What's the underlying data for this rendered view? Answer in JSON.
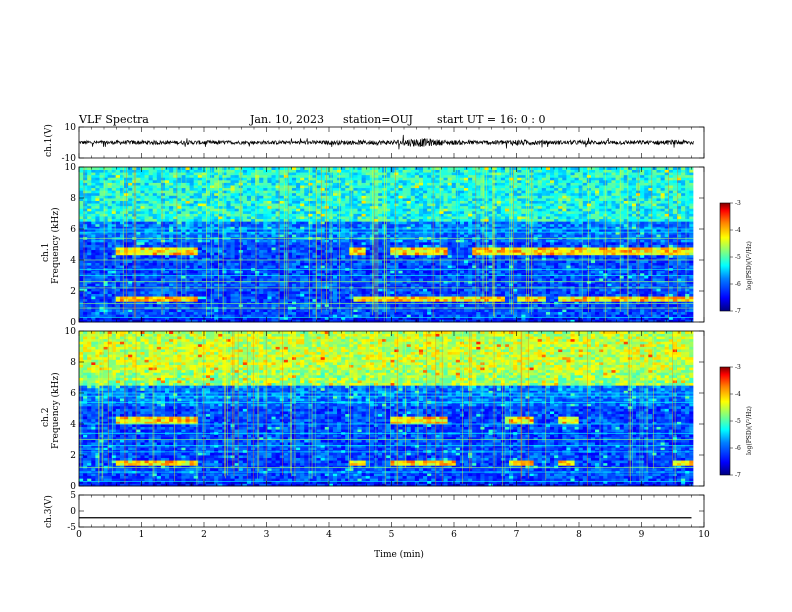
{
  "header": {
    "title": "VLF Spectra",
    "date": "Jan. 10, 2023",
    "station": "station=OUJ",
    "start": "start UT =  16: 0 : 0"
  },
  "colors": {
    "scale": [
      "#00007f",
      "#0000ff",
      "#0080ff",
      "#00ffff",
      "#80ff80",
      "#ffff00",
      "#ff8000",
      "#ff0000",
      "#7f0000"
    ],
    "axes": "#000000",
    "background": "#ffffff"
  },
  "chart_data": [
    {
      "type": "line",
      "id": "ch1_waveform",
      "ylabel": "ch.1(V)",
      "ylim": [
        -10,
        10
      ],
      "yticks": [
        "10",
        "-10"
      ],
      "note": "broadband waveform, amplitude about +/-1.5 V with bursts near 5.4 min",
      "x": [
        0,
        0.5,
        1.0,
        1.5,
        2.0,
        2.5,
        3.0,
        3.5,
        4.0,
        4.5,
        5.0,
        5.3,
        5.5,
        5.8,
        6.0,
        6.5,
        7.0,
        7.5,
        8.0,
        8.5,
        9.0,
        9.5,
        9.8
      ],
      "envelope": [
        1.2,
        1.3,
        1.4,
        1.2,
        1.3,
        1.1,
        1.2,
        1.2,
        1.3,
        1.4,
        1.6,
        2.6,
        2.8,
        1.8,
        1.5,
        1.4,
        1.9,
        1.3,
        1.4,
        1.3,
        1.4,
        1.5,
        1.6
      ]
    },
    {
      "type": "heatmap",
      "id": "ch1_spectrogram",
      "ylabel": "ch.1",
      "ylabel2": "Frequency (kHz)",
      "ylim": [
        0,
        10
      ],
      "yticks": [
        "0",
        "2",
        "4",
        "6",
        "8",
        "10"
      ],
      "colorbar_label": "log(PSD)(V²/Hz)",
      "colorbar_range": [
        -7,
        -3
      ],
      "colorbar_ticks": [
        "-3",
        "-4",
        "-5",
        "-6",
        "-7"
      ],
      "bands": [
        {
          "f_khz": 1.5,
          "segments": [
            [
              0.6,
              1.9
            ],
            [
              4.4,
              5.2
            ],
            [
              5.0,
              6.0
            ],
            [
              6.0,
              6.8
            ],
            [
              7.0,
              7.5
            ],
            [
              7.7,
              9.8
            ]
          ]
        },
        {
          "f_khz": 4.6,
          "segments": [
            [
              0.6,
              1.9
            ],
            [
              4.3,
              4.6
            ],
            [
              5.0,
              5.9
            ],
            [
              6.3,
              9.8
            ]
          ]
        }
      ]
    },
    {
      "type": "heatmap",
      "id": "ch2_spectrogram",
      "ylabel": "ch.2",
      "ylabel2": "Frequency (kHz)",
      "ylim": [
        0,
        10
      ],
      "yticks": [
        "0",
        "2",
        "4",
        "6",
        "8",
        "10"
      ],
      "colorbar_label": "log(PSD)(V²/Hz)",
      "colorbar_range": [
        -7,
        -3
      ],
      "colorbar_ticks": [
        "-3",
        "-4",
        "-5",
        "-6",
        "-7"
      ],
      "bands": [
        {
          "f_khz": 1.5,
          "segments": [
            [
              0.6,
              1.9
            ],
            [
              4.3,
              4.6
            ],
            [
              5.0,
              6.0
            ],
            [
              6.9,
              7.3
            ],
            [
              7.7,
              7.9
            ],
            [
              9.5,
              9.8
            ]
          ]
        },
        {
          "f_khz": 4.3,
          "segments": [
            [
              0.6,
              1.9
            ],
            [
              5.0,
              5.9
            ],
            [
              6.8,
              7.3
            ],
            [
              7.7,
              8.0
            ]
          ]
        }
      ]
    },
    {
      "type": "line",
      "id": "ch3_waveform",
      "ylabel": "ch.3(V)",
      "ylim": [
        -5,
        5
      ],
      "yticks": [
        "5",
        "0",
        "-5"
      ],
      "x": [
        0,
        9.8
      ],
      "y": [
        -2.1,
        -2.1
      ]
    }
  ],
  "xaxis": {
    "label": "Time (min)",
    "ticks": [
      "0",
      "1",
      "2",
      "3",
      "4",
      "5",
      "6",
      "7",
      "8",
      "9",
      "10"
    ],
    "xlim": [
      0,
      10
    ]
  }
}
